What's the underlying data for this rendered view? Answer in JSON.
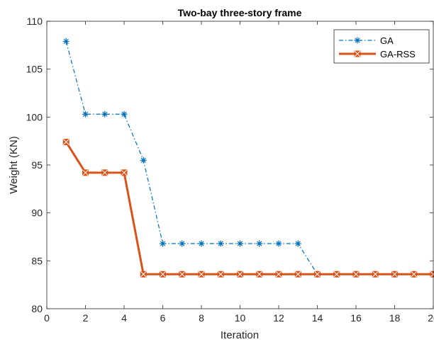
{
  "chart_data": {
    "type": "line",
    "title": "Two-bay three-story frame",
    "xlabel": "Iteration",
    "ylabel": "Weight (KN)",
    "xlim": [
      0,
      20
    ],
    "ylim": [
      80,
      110
    ],
    "xticks": [
      0,
      2,
      4,
      6,
      8,
      10,
      12,
      14,
      16,
      18,
      20
    ],
    "yticks": [
      80,
      85,
      90,
      95,
      100,
      105,
      110
    ],
    "grid": false,
    "legend_position": "top-right",
    "x": [
      1,
      2,
      3,
      4,
      5,
      6,
      7,
      8,
      9,
      10,
      11,
      12,
      13,
      14,
      15,
      16,
      17,
      18,
      19,
      20
    ],
    "series": [
      {
        "name": "GA",
        "color": "#0072BD",
        "line_style": "dash-dot",
        "marker": "asterisk",
        "values": [
          107.9,
          100.3,
          100.3,
          100.3,
          95.5,
          86.8,
          86.8,
          86.8,
          86.8,
          86.8,
          86.8,
          86.8,
          86.8,
          83.6,
          83.6,
          83.6,
          83.6,
          83.6,
          83.6,
          83.6
        ]
      },
      {
        "name": "GA-RSS",
        "color": "#D95319",
        "line_style": "solid",
        "marker": "x-square",
        "values": [
          97.4,
          94.2,
          94.2,
          94.2,
          83.6,
          83.6,
          83.6,
          83.6,
          83.6,
          83.6,
          83.6,
          83.6,
          83.6,
          83.6,
          83.6,
          83.6,
          83.6,
          83.6,
          83.6,
          83.6
        ]
      }
    ]
  }
}
